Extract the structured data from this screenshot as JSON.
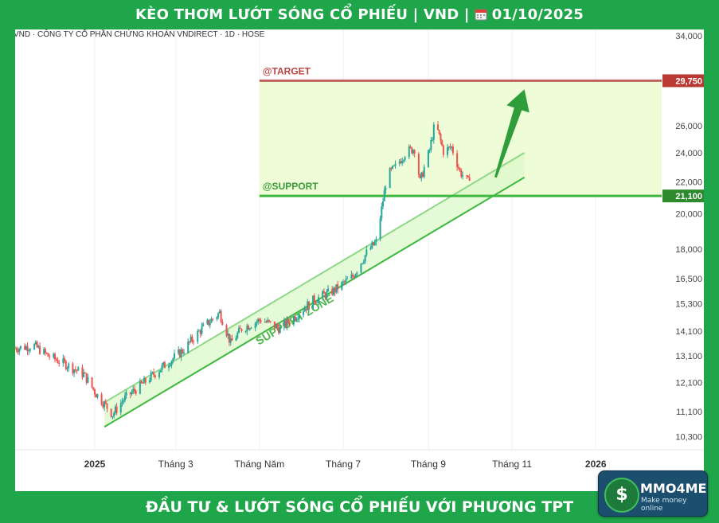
{
  "header": {
    "title_part1": "KÈO THƠM LƯỚT SÓNG CỔ PHIẾU | VND |",
    "date": "01/10/2025",
    "calendar_icon": "calendar-icon"
  },
  "footer": {
    "title": "ĐẦU TƯ & LƯỚT SÓNG CỔ PHIẾU VỚI PHƯƠNG TPT"
  },
  "logo": {
    "symbol": "$",
    "name": "MMO4ME",
    "tagline": "Make money online"
  },
  "colors": {
    "brand_green": "#1fa54a",
    "up_candle": "#26a69a",
    "down_candle": "#ef5350",
    "zone_fill": "#eefcd8",
    "support_line": "#3fb83f",
    "target_line": "#c0605a",
    "arrow": "#2f9e3a"
  },
  "chart_data": {
    "type": "candlestick",
    "symbol_line": "VND · CÔNG TY CỔ PHẦN CHỨNG KHOÁN VNDIRECT · 1D · HOSE",
    "x_ticks": [
      "2025",
      "Tháng 3",
      "Tháng Năm",
      "Tháng 7",
      "Tháng 9",
      "Tháng 11",
      "2026"
    ],
    "y_ticks": [
      "34,000",
      "26,000",
      "24,000",
      "22,000",
      "20,000",
      "18,000",
      "16,500",
      "15,300",
      "14,100",
      "13,100",
      "12,100",
      "11,100",
      "10,300"
    ],
    "y_scale": "log",
    "x_range": [
      "2024-11-04",
      "2026-02-18"
    ],
    "y_range": [
      9900,
      34500
    ],
    "levels": [
      {
        "label": "@TARGET",
        "value": 29750,
        "value_text": "29,750",
        "color": "#c0605a"
      },
      {
        "label": "@SUPPORT",
        "value": 21100,
        "value_text": "21,100",
        "color": "#3fb83f"
      }
    ],
    "channel_label": "SUPPORT ZONE",
    "support_channel": {
      "lower": [
        [
          "2025-01-08",
          10600
        ],
        [
          "2025-11-10",
          22300
        ]
      ],
      "upper": [
        [
          "2025-01-08",
          11400
        ],
        [
          "2025-11-10",
          24000
        ]
      ]
    },
    "arrow": {
      "from": [
        "2025-10-20",
        22300
      ],
      "to": [
        "2025-11-10",
        29000
      ]
    },
    "price_path": [
      [
        "2024-11-04",
        13400
      ],
      [
        "2024-11-18",
        13500
      ],
      [
        "2024-11-28",
        13100
      ],
      [
        "2024-12-10",
        12800
      ],
      [
        "2024-12-24",
        12400
      ],
      [
        "2025-01-02",
        11700
      ],
      [
        "2025-01-14",
        11000
      ],
      [
        "2025-01-22",
        11500
      ],
      [
        "2025-02-06",
        12100
      ],
      [
        "2025-02-20",
        12700
      ],
      [
        "2025-03-06",
        13300
      ],
      [
        "2025-03-20",
        14200
      ],
      [
        "2025-04-02",
        14900
      ],
      [
        "2025-04-10",
        13600
      ],
      [
        "2025-04-18",
        14200
      ],
      [
        "2025-05-02",
        14600
      ],
      [
        "2025-05-16",
        14200
      ],
      [
        "2025-05-28",
        14800
      ],
      [
        "2025-06-10",
        15500
      ],
      [
        "2025-06-24",
        15900
      ],
      [
        "2025-07-08",
        16600
      ],
      [
        "2025-07-18",
        17800
      ],
      [
        "2025-07-25",
        18400
      ],
      [
        "2025-07-29",
        20300
      ],
      [
        "2025-08-02",
        22400
      ],
      [
        "2025-08-08",
        23000
      ],
      [
        "2025-08-16",
        24100
      ],
      [
        "2025-08-22",
        24300
      ],
      [
        "2025-08-26",
        22000
      ],
      [
        "2025-09-02",
        24200
      ],
      [
        "2025-09-06",
        26300
      ],
      [
        "2025-09-12",
        24100
      ],
      [
        "2025-09-18",
        24400
      ],
      [
        "2025-09-24",
        22700
      ],
      [
        "2025-09-30",
        22000
      ],
      [
        "2025-10-01",
        22400
      ]
    ]
  }
}
